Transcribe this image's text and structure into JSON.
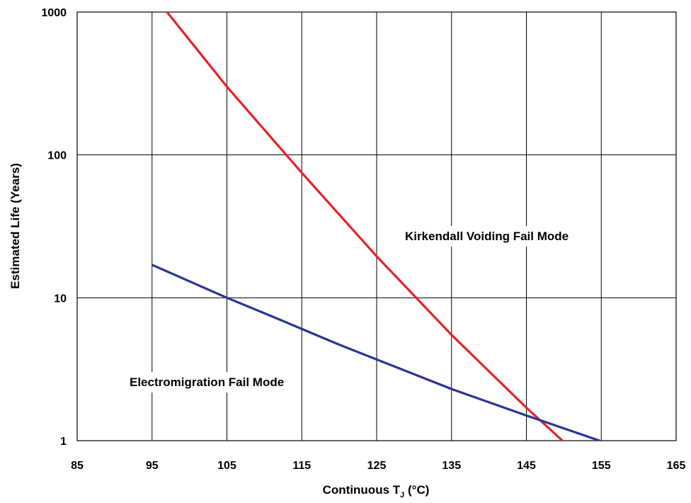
{
  "chart_data": {
    "type": "line",
    "xlabel_main": "Continuous T",
    "xlabel_sub": "J",
    "xlabel_unit": " (°C)",
    "ylabel": "Estimated Life (Years)",
    "xlim": [
      85,
      165
    ],
    "ylim": [
      1,
      1000
    ],
    "y_scale": "log",
    "grid": true,
    "x_ticks": [
      "85",
      "95",
      "105",
      "115",
      "125",
      "135",
      "145",
      "155",
      "165"
    ],
    "y_ticks": [
      "1",
      "10",
      "100",
      "1000"
    ],
    "series": [
      {
        "label": "Kirkendall Voiding Fail Mode",
        "color": "#e8202a",
        "x": [
          97,
          105,
          115,
          125,
          135,
          145,
          150
        ],
        "y": [
          1000,
          300,
          75,
          19.5,
          5.5,
          1.7,
          0.98
        ]
      },
      {
        "label": "Electromigration Fail Mode",
        "color": "#2b3492",
        "x": [
          95,
          105,
          110,
          120,
          125,
          135,
          145,
          155
        ],
        "y": [
          17,
          10,
          7.8,
          4.7,
          3.7,
          2.3,
          1.5,
          0.99
        ]
      }
    ]
  }
}
